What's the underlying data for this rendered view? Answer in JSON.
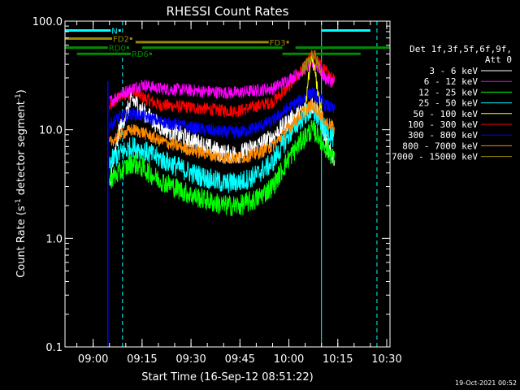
{
  "chart_data": {
    "type": "line",
    "title": "RHESSI Count Rates",
    "xlabel": "Start Time (16-Sep-12 08:51:22)",
    "ylabel_parts": [
      "Count Rate (s",
      "-1",
      " detector segment",
      "-1",
      ")"
    ],
    "yscale": "log",
    "ylim": [
      0.1,
      100.0
    ],
    "xlim": [
      "08:51:22",
      "10:31:00"
    ],
    "grid": false,
    "y_ticks": [
      {
        "value": 0.1,
        "label": "0.1"
      },
      {
        "value": 1.0,
        "label": "1.0"
      },
      {
        "value": 10.0,
        "label": "10.0"
      },
      {
        "value": 100.0,
        "label": "100.0"
      }
    ],
    "x_ticks": [
      {
        "time": "09:00",
        "label": "09:00"
      },
      {
        "time": "09:15",
        "label": "09:15"
      },
      {
        "time": "09:30",
        "label": "09:30"
      },
      {
        "time": "09:45",
        "label": "09:45"
      },
      {
        "time": "10:00",
        "label": "10:00"
      },
      {
        "time": "10:15",
        "label": "10:15"
      },
      {
        "time": "10:30",
        "label": "10:30"
      }
    ],
    "legend_header": [
      "Det 1f,3f,5f,6f,9f,",
      "Att 0"
    ],
    "legend_placement": "right",
    "data_start": "09:04:30",
    "series": [
      {
        "name": "3 - 6 keV",
        "color": "#ffffff",
        "times": [
          "09:05",
          "09:08",
          "09:12",
          "09:15",
          "09:20",
          "09:30",
          "09:40",
          "09:45",
          "09:50",
          "09:55",
          "10:00",
          "10:03",
          "10:06",
          "10:08",
          "10:10",
          "10:12",
          "10:14"
        ],
        "values": [
          3.0,
          10.0,
          19.0,
          15.0,
          11.0,
          8.0,
          6.0,
          6.0,
          7.0,
          8.5,
          12.0,
          14.0,
          16.0,
          17.0,
          12.0,
          6.5,
          5.5
        ]
      },
      {
        "name": "6 - 12 keV",
        "color": "#ff00ff",
        "times": [
          "09:05",
          "09:08",
          "09:12",
          "09:15",
          "09:20",
          "09:30",
          "09:40",
          "09:45",
          "09:50",
          "09:55",
          "10:00",
          "10:04",
          "10:07",
          "10:09",
          "10:11",
          "10:13",
          "10:14"
        ],
        "values": [
          18.0,
          21.0,
          24.0,
          26.0,
          24.0,
          23.0,
          22.0,
          22.0,
          23.0,
          24.0,
          29.0,
          35.0,
          40.0,
          38.0,
          30.0,
          28.0,
          27.0
        ]
      },
      {
        "name": "12 - 25 keV",
        "color": "#00ff00",
        "times": [
          "09:05",
          "09:08",
          "09:12",
          "09:15",
          "09:20",
          "09:30",
          "09:40",
          "09:45",
          "09:50",
          "09:55",
          "10:00",
          "10:04",
          "10:07",
          "10:09",
          "10:11",
          "10:13",
          "10:14"
        ],
        "values": [
          3.5,
          4.0,
          5.0,
          4.5,
          3.5,
          2.5,
          2.0,
          2.0,
          2.3,
          3.0,
          5.5,
          8.0,
          10.0,
          9.0,
          7.0,
          6.0,
          5.0
        ]
      },
      {
        "name": "25 - 50 keV",
        "color": "#00ffff",
        "times": [
          "09:05",
          "09:08",
          "09:12",
          "09:15",
          "09:20",
          "09:30",
          "09:40",
          "09:45",
          "09:50",
          "09:55",
          "10:00",
          "10:04",
          "10:07",
          "10:09",
          "10:11",
          "10:13",
          "10:14"
        ],
        "values": [
          5.0,
          6.0,
          7.0,
          6.5,
          5.5,
          4.0,
          3.2,
          3.3,
          3.8,
          5.0,
          9.0,
          13.0,
          15.0,
          13.0,
          10.0,
          9.0,
          8.0
        ]
      },
      {
        "name": "50 - 100 keV",
        "color": "#ffff00",
        "times": [
          "10:05",
          "10:06",
          "10:07",
          "10:08",
          "10:09",
          "10:10"
        ],
        "values": [
          15.0,
          30.0,
          45.0,
          35.0,
          20.0,
          15.0
        ]
      },
      {
        "name": "100 - 300 keV",
        "color": "#ff0000",
        "times": [
          "09:05",
          "09:08",
          "09:12",
          "09:15",
          "09:20",
          "09:30",
          "09:40",
          "09:45",
          "09:50",
          "09:55",
          "10:00",
          "10:04",
          "10:07",
          "10:08",
          "10:10",
          "10:12",
          "10:14"
        ],
        "values": [
          16.0,
          20.0,
          22.0,
          20.0,
          17.0,
          16.0,
          15.0,
          15.0,
          16.5,
          18.0,
          25.0,
          35.0,
          48.0,
          47.0,
          38.0,
          33.0,
          28.0
        ]
      },
      {
        "name": "300 - 800 keV",
        "color": "#0000ff",
        "times": [
          "09:05",
          "09:08",
          "09:12",
          "09:15",
          "09:20",
          "09:30",
          "09:40",
          "09:45",
          "09:50",
          "09:55",
          "10:00",
          "10:04",
          "10:07",
          "10:09",
          "10:11",
          "10:13",
          "10:14"
        ],
        "values": [
          11.0,
          13.0,
          14.0,
          13.5,
          12.0,
          10.5,
          9.5,
          9.5,
          10.5,
          12.0,
          16.0,
          19.0,
          22.0,
          20.0,
          17.0,
          16.0,
          15.0
        ]
      },
      {
        "name": "800 - 7000 keV",
        "color": "#ff8c00",
        "times": [
          "09:05",
          "09:08",
          "09:12",
          "09:15",
          "09:20",
          "09:30",
          "09:40",
          "09:45",
          "09:50",
          "09:55",
          "10:00",
          "10:04",
          "10:07",
          "10:09",
          "10:11",
          "10:13",
          "10:14"
        ],
        "values": [
          7.5,
          9.0,
          10.0,
          9.5,
          8.0,
          6.5,
          5.5,
          5.5,
          6.0,
          7.0,
          10.5,
          14.0,
          17.0,
          15.0,
          12.0,
          11.0,
          10.0
        ]
      },
      {
        "name": "7000 - 15000 keV",
        "color": "#9a8a00",
        "times": [
          "10:04",
          "10:06",
          "10:07",
          "10:08",
          "10:09",
          "10:10"
        ],
        "values": [
          35.0,
          42.0,
          50.0,
          48.0,
          40.0,
          35.0
        ]
      }
    ],
    "annotations": [
      {
        "label": "N",
        "color": "#00ffff",
        "segments": [
          [
            "08:51:22",
            "09:08:30"
          ],
          [
            "10:10:00",
            "10:25:00"
          ]
        ],
        "level_y": 82.0
      },
      {
        "label": "FD2",
        "color": "#9a8a00",
        "segments": [
          [
            "08:51:22",
            "09:12:00"
          ]
        ],
        "level_y": 69.0
      },
      {
        "label": "FD3",
        "color": "#9a8a00",
        "segments": [
          [
            "09:13:00",
            "10:00:00"
          ]
        ],
        "level_y": 64.0
      },
      {
        "label": "RD0",
        "color": "#008c00",
        "segments": [
          [
            "08:51:22",
            "09:11:00"
          ],
          [
            "09:15:00",
            "09:58:00"
          ],
          [
            "10:02:00",
            "10:31:00"
          ]
        ],
        "level_y": 57.0
      },
      {
        "label": "RD6",
        "color": "#008c00",
        "segments": [
          [
            "08:55:00",
            "09:18:00"
          ],
          [
            "09:58:00",
            "10:22:00"
          ]
        ],
        "level_y": 50.0
      }
    ],
    "vertical_markers": [
      {
        "time": "08:51:22",
        "color": "#00ffff",
        "style": "solid"
      },
      {
        "time": "09:09:00",
        "color": "#00ffff",
        "style": "dashed"
      },
      {
        "time": "10:10:00",
        "color": "#00ffff",
        "style": "solid"
      },
      {
        "time": "10:27:00",
        "color": "#00ffff",
        "style": "dashed"
      },
      {
        "time": "09:04:30",
        "color": "#0000ff",
        "style": "solid"
      }
    ]
  },
  "footer": {
    "timestamp": "19-Oct-2021 00:52"
  }
}
